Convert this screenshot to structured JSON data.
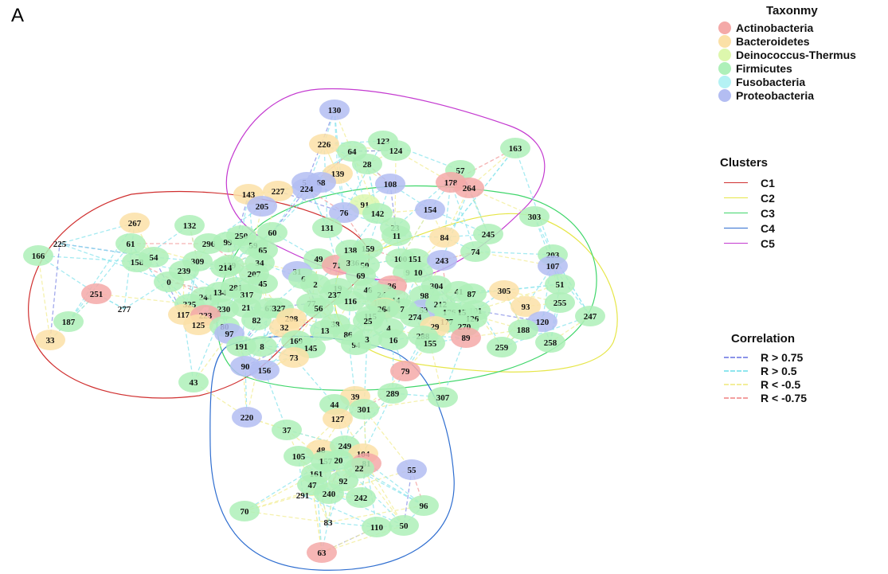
{
  "panel_label": "A",
  "legend": {
    "taxonomy_title": "Taxonmy",
    "taxonomy": [
      {
        "label": "Actinobacteria",
        "color": "#f4a9a8"
      },
      {
        "label": "Bacteroidetes",
        "color": "#fbe0a7"
      },
      {
        "label": "Deinococcus-Thermus",
        "color": "#ddf7ad"
      },
      {
        "label": "Firmicutes",
        "color": "#aef0b9"
      },
      {
        "label": "Fusobacteria",
        "color": "#b4f2f4"
      },
      {
        "label": "Proteobacteria",
        "color": "#b3bdf2"
      }
    ],
    "clusters_title": "Clusters",
    "clusters": [
      {
        "label": "C1",
        "color": "#d03030"
      },
      {
        "label": "C2",
        "color": "#e6e648"
      },
      {
        "label": "C3",
        "color": "#3fd66a"
      },
      {
        "label": "C4",
        "color": "#2f6ed0"
      },
      {
        "label": "C5",
        "color": "#c43ad0"
      }
    ],
    "correlation_title": "Correlation",
    "correlation": [
      {
        "label": "R > 0.75",
        "color": "#8b94e8"
      },
      {
        "label": "R > 0.5",
        "color": "#8fe6ee"
      },
      {
        "label": "R < -0.5",
        "color": "#f3ee9a"
      },
      {
        "label": "R < -0.75",
        "color": "#f3a0a0"
      }
    ]
  },
  "taxa": {
    "A": "#f4a9a8",
    "B": "#fbe0a7",
    "D": "#ddf7ad",
    "F": "#aef0b9",
    "U": "#b4f2f4",
    "P": "#b3bdf2"
  },
  "chart_data": {
    "type": "network",
    "nodes": [
      {
        "id": "130",
        "taxon": "P"
      },
      {
        "id": "226",
        "taxon": "B"
      },
      {
        "id": "123",
        "taxon": "F"
      },
      {
        "id": "124",
        "taxon": "F"
      },
      {
        "id": "64",
        "taxon": "F"
      },
      {
        "id": "28",
        "taxon": "F"
      },
      {
        "id": "163",
        "taxon": "F"
      },
      {
        "id": "57",
        "taxon": "F"
      },
      {
        "id": "178",
        "taxon": "A"
      },
      {
        "id": "264",
        "taxon": "A"
      },
      {
        "id": "139",
        "taxon": "B"
      },
      {
        "id": "58",
        "taxon": "P"
      },
      {
        "id": "68",
        "taxon": "P"
      },
      {
        "id": "224",
        "taxon": "P"
      },
      {
        "id": "108",
        "taxon": "P"
      },
      {
        "id": "143",
        "taxon": "B"
      },
      {
        "id": "227",
        "taxon": "B"
      },
      {
        "id": "205",
        "taxon": "P"
      },
      {
        "id": "91",
        "taxon": "D"
      },
      {
        "id": "76",
        "taxon": "P"
      },
      {
        "id": "142",
        "taxon": "F"
      },
      {
        "id": "154",
        "taxon": "P"
      },
      {
        "id": "303",
        "taxon": "F"
      },
      {
        "id": "267",
        "taxon": "B"
      },
      {
        "id": "132",
        "taxon": "F"
      },
      {
        "id": "131",
        "taxon": "F"
      },
      {
        "id": "23",
        "taxon": "F"
      },
      {
        "id": "11",
        "taxon": "F"
      },
      {
        "id": "84",
        "taxon": "B"
      },
      {
        "id": "245",
        "taxon": "F"
      },
      {
        "id": "225",
        "taxon": "F"
      },
      {
        "id": "61",
        "taxon": "F"
      },
      {
        "id": "296",
        "taxon": "F"
      },
      {
        "id": "99",
        "taxon": "F"
      },
      {
        "id": "250",
        "taxon": "F"
      },
      {
        "id": "60",
        "taxon": "F"
      },
      {
        "id": "59",
        "taxon": "F"
      },
      {
        "id": "65",
        "taxon": "F"
      },
      {
        "id": "159",
        "taxon": "F"
      },
      {
        "id": "166",
        "taxon": "F"
      },
      {
        "id": "158",
        "taxon": "F"
      },
      {
        "id": "54",
        "taxon": "F"
      },
      {
        "id": "309",
        "taxon": "F"
      },
      {
        "id": "49",
        "taxon": "F"
      },
      {
        "id": "71",
        "taxon": "A"
      },
      {
        "id": "138",
        "taxon": "F"
      },
      {
        "id": "336",
        "taxon": "F"
      },
      {
        "id": "50",
        "taxon": "F"
      },
      {
        "id": "100",
        "taxon": "F"
      },
      {
        "id": "151",
        "taxon": "F"
      },
      {
        "id": "243",
        "taxon": "P"
      },
      {
        "id": "74",
        "taxon": "F"
      },
      {
        "id": "203",
        "taxon": "F"
      },
      {
        "id": "107",
        "taxon": "P"
      },
      {
        "id": "239",
        "taxon": "F"
      },
      {
        "id": "139b",
        "label": "139",
        "taxon": "F"
      },
      {
        "id": "214",
        "taxon": "F"
      },
      {
        "id": "34",
        "taxon": "F"
      },
      {
        "id": "31",
        "taxon": "P"
      },
      {
        "id": "69",
        "taxon": "F"
      },
      {
        "id": "9",
        "taxon": "F"
      },
      {
        "id": "10",
        "taxon": "F"
      },
      {
        "id": "0",
        "taxon": "F"
      },
      {
        "id": "207",
        "taxon": "F"
      },
      {
        "id": "6",
        "taxon": "F"
      },
      {
        "id": "2",
        "taxon": "F"
      },
      {
        "id": "36",
        "taxon": "A"
      },
      {
        "id": "304",
        "taxon": "F"
      },
      {
        "id": "41",
        "taxon": "F"
      },
      {
        "id": "87",
        "taxon": "F"
      },
      {
        "id": "305",
        "taxon": "B"
      },
      {
        "id": "51",
        "taxon": "F"
      },
      {
        "id": "255",
        "taxon": "F"
      },
      {
        "id": "251",
        "taxon": "A"
      },
      {
        "id": "277",
        "taxon": "F"
      },
      {
        "id": "45",
        "taxon": "F"
      },
      {
        "id": "19",
        "taxon": "F"
      },
      {
        "id": "237",
        "taxon": "F"
      },
      {
        "id": "46",
        "taxon": "F"
      },
      {
        "id": "24",
        "taxon": "F"
      },
      {
        "id": "14",
        "taxon": "F"
      },
      {
        "id": "98",
        "taxon": "F"
      },
      {
        "id": "93",
        "taxon": "B"
      },
      {
        "id": "244",
        "taxon": "F"
      },
      {
        "id": "134",
        "taxon": "F"
      },
      {
        "id": "281",
        "taxon": "F"
      },
      {
        "id": "317",
        "taxon": "F"
      },
      {
        "id": "116",
        "taxon": "F"
      },
      {
        "id": "109",
        "taxon": "F"
      },
      {
        "id": "53",
        "taxon": "P"
      },
      {
        "id": "212",
        "taxon": "F"
      },
      {
        "id": "101",
        "taxon": "F"
      },
      {
        "id": "247",
        "taxon": "F"
      },
      {
        "id": "325",
        "taxon": "F"
      },
      {
        "id": "230",
        "taxon": "F"
      },
      {
        "id": "21",
        "taxon": "F"
      },
      {
        "id": "67",
        "taxon": "F"
      },
      {
        "id": "327",
        "taxon": "F"
      },
      {
        "id": "77",
        "taxon": "F"
      },
      {
        "id": "56",
        "taxon": "F"
      },
      {
        "id": "120",
        "taxon": "B"
      },
      {
        "id": "264b",
        "label": "264",
        "taxon": "F"
      },
      {
        "id": "7",
        "taxon": "F"
      },
      {
        "id": "176",
        "taxon": "F"
      },
      {
        "id": "15",
        "taxon": "F"
      },
      {
        "id": "126",
        "taxon": "F"
      },
      {
        "id": "117",
        "taxon": "B"
      },
      {
        "id": "223",
        "taxon": "A"
      },
      {
        "id": "187",
        "taxon": "F"
      },
      {
        "id": "125",
        "taxon": "B"
      },
      {
        "id": "82",
        "taxon": "F"
      },
      {
        "id": "208",
        "taxon": "B"
      },
      {
        "id": "115",
        "taxon": "F"
      },
      {
        "id": "274",
        "taxon": "F"
      },
      {
        "id": "177",
        "taxon": "F"
      },
      {
        "id": "120b",
        "label": "120",
        "taxon": "P"
      },
      {
        "id": "33",
        "taxon": "B"
      },
      {
        "id": "80",
        "taxon": "F"
      },
      {
        "id": "97",
        "taxon": "P"
      },
      {
        "id": "32",
        "taxon": "B"
      },
      {
        "id": "38",
        "taxon": "F"
      },
      {
        "id": "25",
        "taxon": "F"
      },
      {
        "id": "4",
        "taxon": "F"
      },
      {
        "id": "29",
        "taxon": "B"
      },
      {
        "id": "270",
        "taxon": "F"
      },
      {
        "id": "188",
        "taxon": "F"
      },
      {
        "id": "13",
        "taxon": "F"
      },
      {
        "id": "86",
        "taxon": "F"
      },
      {
        "id": "89",
        "taxon": "A"
      },
      {
        "id": "258",
        "taxon": "F"
      },
      {
        "id": "191",
        "taxon": "F"
      },
      {
        "id": "8",
        "taxon": "F"
      },
      {
        "id": "169",
        "taxon": "F"
      },
      {
        "id": "145",
        "taxon": "F"
      },
      {
        "id": "94",
        "taxon": "F"
      },
      {
        "id": "3",
        "taxon": "F"
      },
      {
        "id": "16",
        "taxon": "F"
      },
      {
        "id": "288",
        "taxon": "F"
      },
      {
        "id": "155",
        "taxon": "F"
      },
      {
        "id": "259",
        "taxon": "F"
      },
      {
        "id": "73",
        "taxon": "B"
      },
      {
        "id": "90",
        "taxon": "P"
      },
      {
        "id": "156",
        "taxon": "P"
      },
      {
        "id": "79",
        "taxon": "A"
      },
      {
        "id": "43",
        "taxon": "F"
      },
      {
        "id": "39",
        "taxon": "B"
      },
      {
        "id": "289",
        "taxon": "F"
      },
      {
        "id": "307",
        "taxon": "F"
      },
      {
        "id": "44",
        "taxon": "F"
      },
      {
        "id": "301",
        "taxon": "F"
      },
      {
        "id": "220",
        "taxon": "P"
      },
      {
        "id": "127",
        "taxon": "B"
      },
      {
        "id": "37",
        "taxon": "F"
      },
      {
        "id": "48",
        "taxon": "B"
      },
      {
        "id": "249",
        "taxon": "F"
      },
      {
        "id": "104",
        "taxon": "B"
      },
      {
        "id": "105",
        "taxon": "F"
      },
      {
        "id": "157",
        "taxon": "F"
      },
      {
        "id": "20",
        "taxon": "F"
      },
      {
        "id": "81",
        "taxon": "A"
      },
      {
        "id": "55",
        "taxon": "P"
      },
      {
        "id": "161",
        "taxon": "F"
      },
      {
        "id": "22",
        "taxon": "F"
      },
      {
        "id": "92",
        "taxon": "F"
      },
      {
        "id": "47",
        "taxon": "F"
      },
      {
        "id": "291",
        "taxon": "F"
      },
      {
        "id": "240",
        "taxon": "F"
      },
      {
        "id": "242",
        "taxon": "F"
      },
      {
        "id": "96",
        "taxon": "F"
      },
      {
        "id": "70",
        "taxon": "F"
      },
      {
        "id": "83",
        "taxon": "F"
      },
      {
        "id": "110",
        "taxon": "F"
      },
      {
        "id": "50b",
        "label": "50",
        "taxon": "F"
      },
      {
        "id": "63",
        "taxon": "A"
      }
    ]
  }
}
